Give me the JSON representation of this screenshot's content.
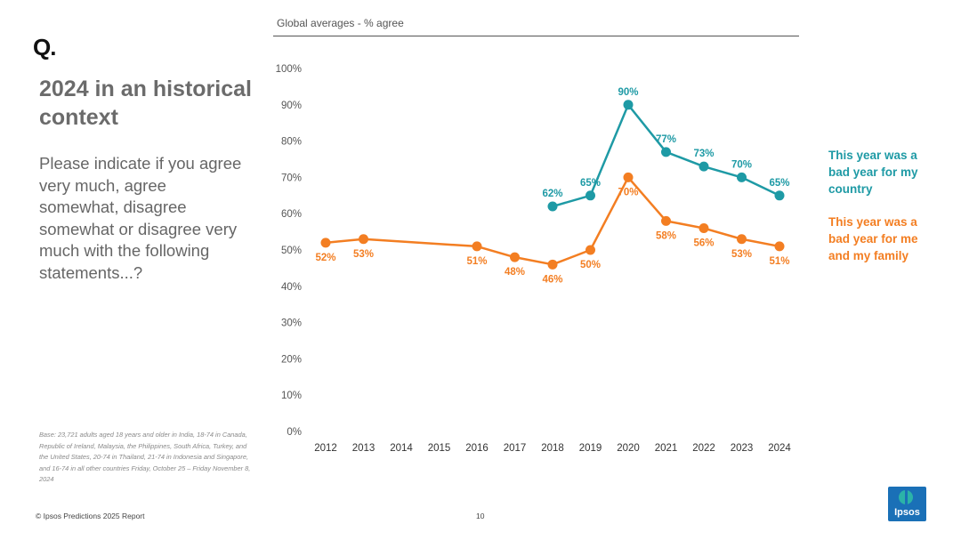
{
  "slide": {
    "q_mark": "Q.",
    "title": "2024 in an historical context",
    "question": "Please indicate if you agree very much, agree somewhat, disagree somewhat or disagree very much with the following statements...?",
    "base_note": "Base: 23,721 adults aged 18 years and older in India, 18-74 in Canada, Republic of Ireland, Malaysia, the Philippines, South Africa, Turkey, and the United States, 20-74 in Thailand, 21-74 in Indonesia and Singapore, and 16-74 in all other countries Friday, October 25 – Friday November 8, 2024",
    "footer": "© Ipsos Predictions 2025 Report",
    "page_number": "10",
    "logo_text": "Ipsos"
  },
  "chart_data": {
    "type": "line",
    "title": "Global averages - % agree",
    "x": [
      2012,
      2013,
      2014,
      2015,
      2016,
      2017,
      2018,
      2019,
      2020,
      2021,
      2022,
      2023,
      2024
    ],
    "ylim": [
      0,
      100
    ],
    "yticks": [
      0,
      10,
      20,
      30,
      40,
      50,
      60,
      70,
      80,
      90,
      100
    ],
    "ytick_suffix": "%",
    "grid": false,
    "legend_position": "right",
    "series": [
      {
        "name": "This year was a bad year for my country",
        "color": "#1e9aa5",
        "label_position": "above",
        "points": [
          {
            "x": 2018,
            "y": 62
          },
          {
            "x": 2019,
            "y": 65
          },
          {
            "x": 2020,
            "y": 90
          },
          {
            "x": 2021,
            "y": 77
          },
          {
            "x": 2022,
            "y": 73
          },
          {
            "x": 2023,
            "y": 70
          },
          {
            "x": 2024,
            "y": 65
          }
        ],
        "labels": [
          "62%",
          "65%",
          "90%",
          "77%",
          "73%",
          "70%",
          "65%"
        ]
      },
      {
        "name": "This year was a bad year for me and my family",
        "color": "#f37e22",
        "label_position": "below",
        "points": [
          {
            "x": 2012,
            "y": 52
          },
          {
            "x": 2013,
            "y": 53
          },
          {
            "x": 2016,
            "y": 51
          },
          {
            "x": 2017,
            "y": 48
          },
          {
            "x": 2018,
            "y": 46
          },
          {
            "x": 2019,
            "y": 50
          },
          {
            "x": 2020,
            "y": 70
          },
          {
            "x": 2021,
            "y": 58
          },
          {
            "x": 2022,
            "y": 56
          },
          {
            "x": 2023,
            "y": 53
          },
          {
            "x": 2024,
            "y": 51
          }
        ],
        "labels": [
          "52%",
          "53%",
          "51%",
          "48%",
          "46%",
          "50%",
          "70%",
          "58%",
          "56%",
          "53%",
          "51%"
        ]
      }
    ]
  }
}
